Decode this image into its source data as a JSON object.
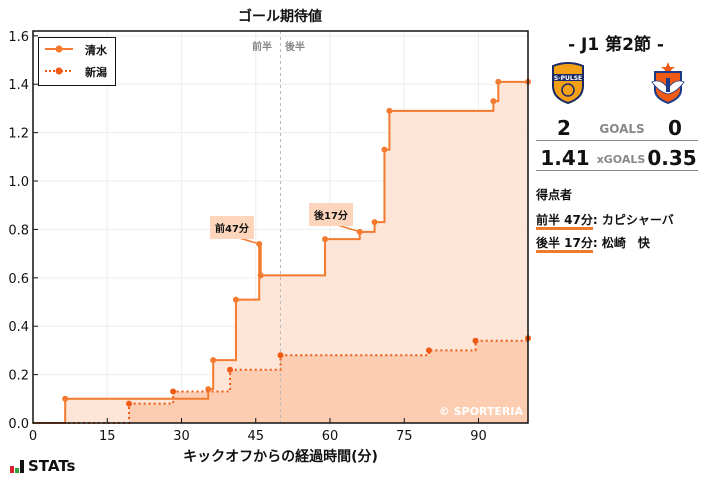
{
  "chart_data": {
    "type": "line",
    "title": "ゴール期待値",
    "xlabel": "キックオフからの経過時間(分)",
    "ylabel": "",
    "xlim": [
      0,
      100
    ],
    "ylim": [
      0.0,
      1.62
    ],
    "x_ticks": [
      0,
      15,
      30,
      45,
      60,
      75,
      90
    ],
    "y_ticks": [
      "0.0",
      "0.2",
      "0.4",
      "0.6",
      "0.8",
      "1.0",
      "1.2",
      "1.4",
      "1.6"
    ],
    "grid": true,
    "legend_position": "upper left",
    "step": true,
    "half_divider_x": 50,
    "half_labels": [
      "前半",
      "後半"
    ],
    "series": [
      {
        "name": "清水",
        "style": "solid",
        "color": "#f47a2f",
        "x": [
          0,
          6.5,
          35.4,
          36.4,
          41,
          45.7,
          46,
          59,
          66,
          69,
          71,
          72,
          93,
          94,
          100
        ],
        "y": [
          0.0,
          0.1,
          0.14,
          0.26,
          0.51,
          0.74,
          0.61,
          0.76,
          0.79,
          0.83,
          1.13,
          1.29,
          1.33,
          1.41,
          1.41
        ]
      },
      {
        "name": "新潟",
        "style": "dotted",
        "color": "#f05a14",
        "x": [
          0,
          19.4,
          28.3,
          39.8,
          50,
          80,
          89.4,
          100
        ],
        "y": [
          0.0,
          0.08,
          0.13,
          0.22,
          0.28,
          0.3,
          0.34,
          0.35
        ]
      }
    ],
    "annotations": [
      {
        "text": "前47分",
        "x": 45.7,
        "y": 0.74
      },
      {
        "text": "後17分",
        "x": 66,
        "y": 0.79
      }
    ],
    "watermark": "© SPORTERIA"
  },
  "sidebar": {
    "round": "- J1 第2節 -",
    "home_team": "清水",
    "away_team": "新潟",
    "home_logo": "s-pulse-crest",
    "away_logo": "albirex-crest",
    "goals": {
      "home": "2",
      "label": "GOALS",
      "away": "0"
    },
    "xgoals": {
      "home": "1.41",
      "label": "xGOALS",
      "away": "0.35"
    },
    "scorers_header": "得点者",
    "scorers": [
      {
        "time": "前半 47分",
        "name": ": カピシャーバ"
      },
      {
        "time": "後半 17分",
        "name": ": 松崎　快"
      }
    ]
  },
  "brand": "STATs",
  "colors": {
    "home": "#f47a2f",
    "away": "#f05a14",
    "home_fill": "#fde3d4",
    "away_fill": "#fcc8a9"
  }
}
